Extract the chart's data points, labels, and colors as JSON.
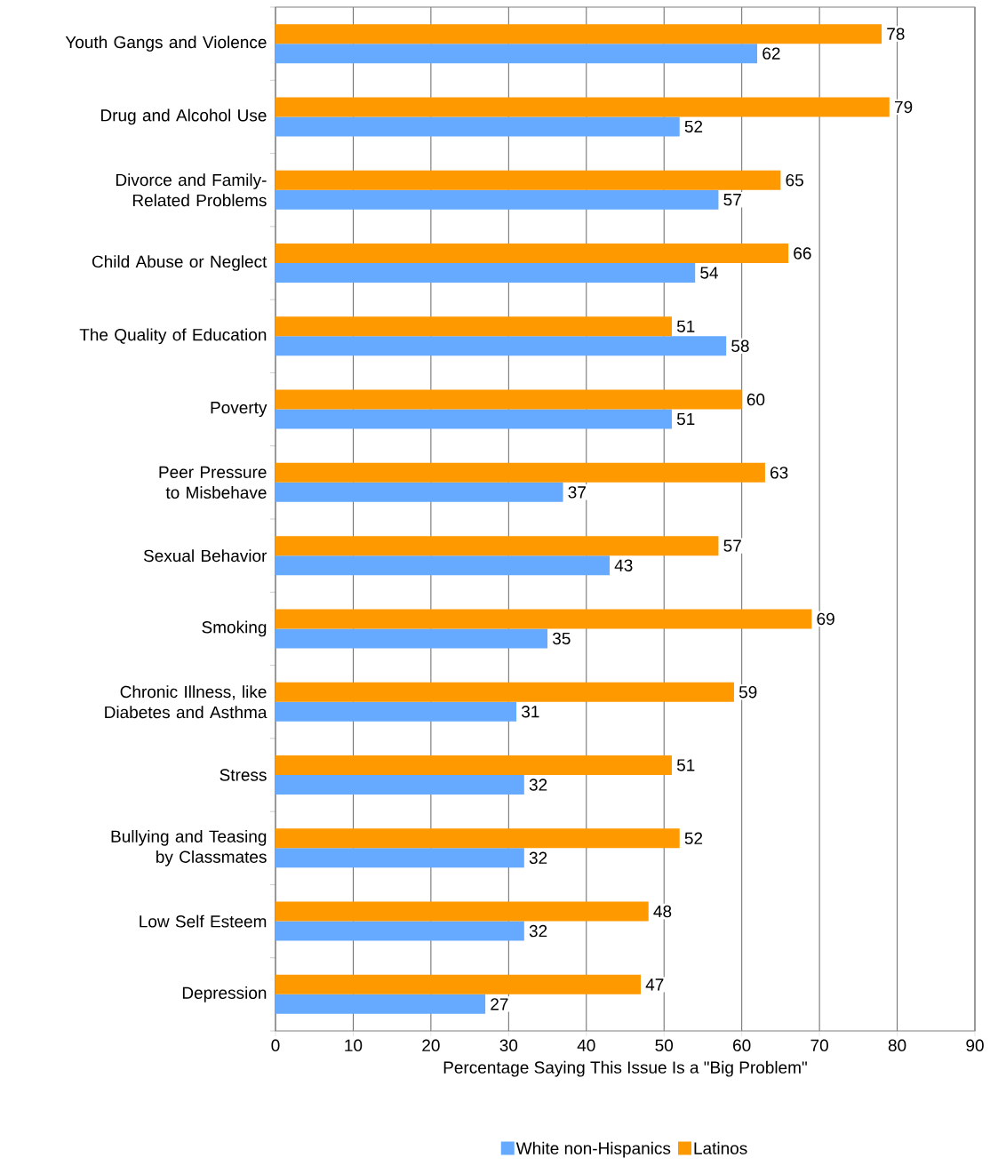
{
  "chart_data": {
    "type": "bar",
    "orientation": "horizontal",
    "categories": [
      "Youth Gangs and Violence",
      "Drug and Alcohol Use",
      "Divorce and Family-Related Problems",
      "Child Abuse or Neglect",
      "The Quality of Education",
      "Poverty",
      "Peer Pressure to Misbehave",
      "Sexual Behavior",
      "Smoking",
      "Chronic Illness, like Diabetes and Asthma",
      "Stress",
      "Bullying and Teasing by Classmates",
      "Low Self Esteem",
      "Depression"
    ],
    "series": [
      {
        "name": "White non-Hispanics",
        "color": "#66aaff",
        "values": [
          62,
          52,
          57,
          54,
          58,
          51,
          37,
          43,
          35,
          31,
          32,
          32,
          32,
          27
        ]
      },
      {
        "name": "Latinos",
        "color": "#ff9900",
        "values": [
          78,
          79,
          65,
          66,
          51,
          60,
          63,
          57,
          69,
          59,
          51,
          52,
          48,
          47
        ]
      }
    ],
    "xlabel": "Percentage Saying This Issue Is a \"Big Problem\"",
    "xlim": [
      0,
      90
    ],
    "xticks": [
      0,
      10,
      20,
      30,
      40,
      50,
      60,
      70,
      80,
      90
    ],
    "grid": "x",
    "legend": "bottom",
    "data_labels": true
  }
}
